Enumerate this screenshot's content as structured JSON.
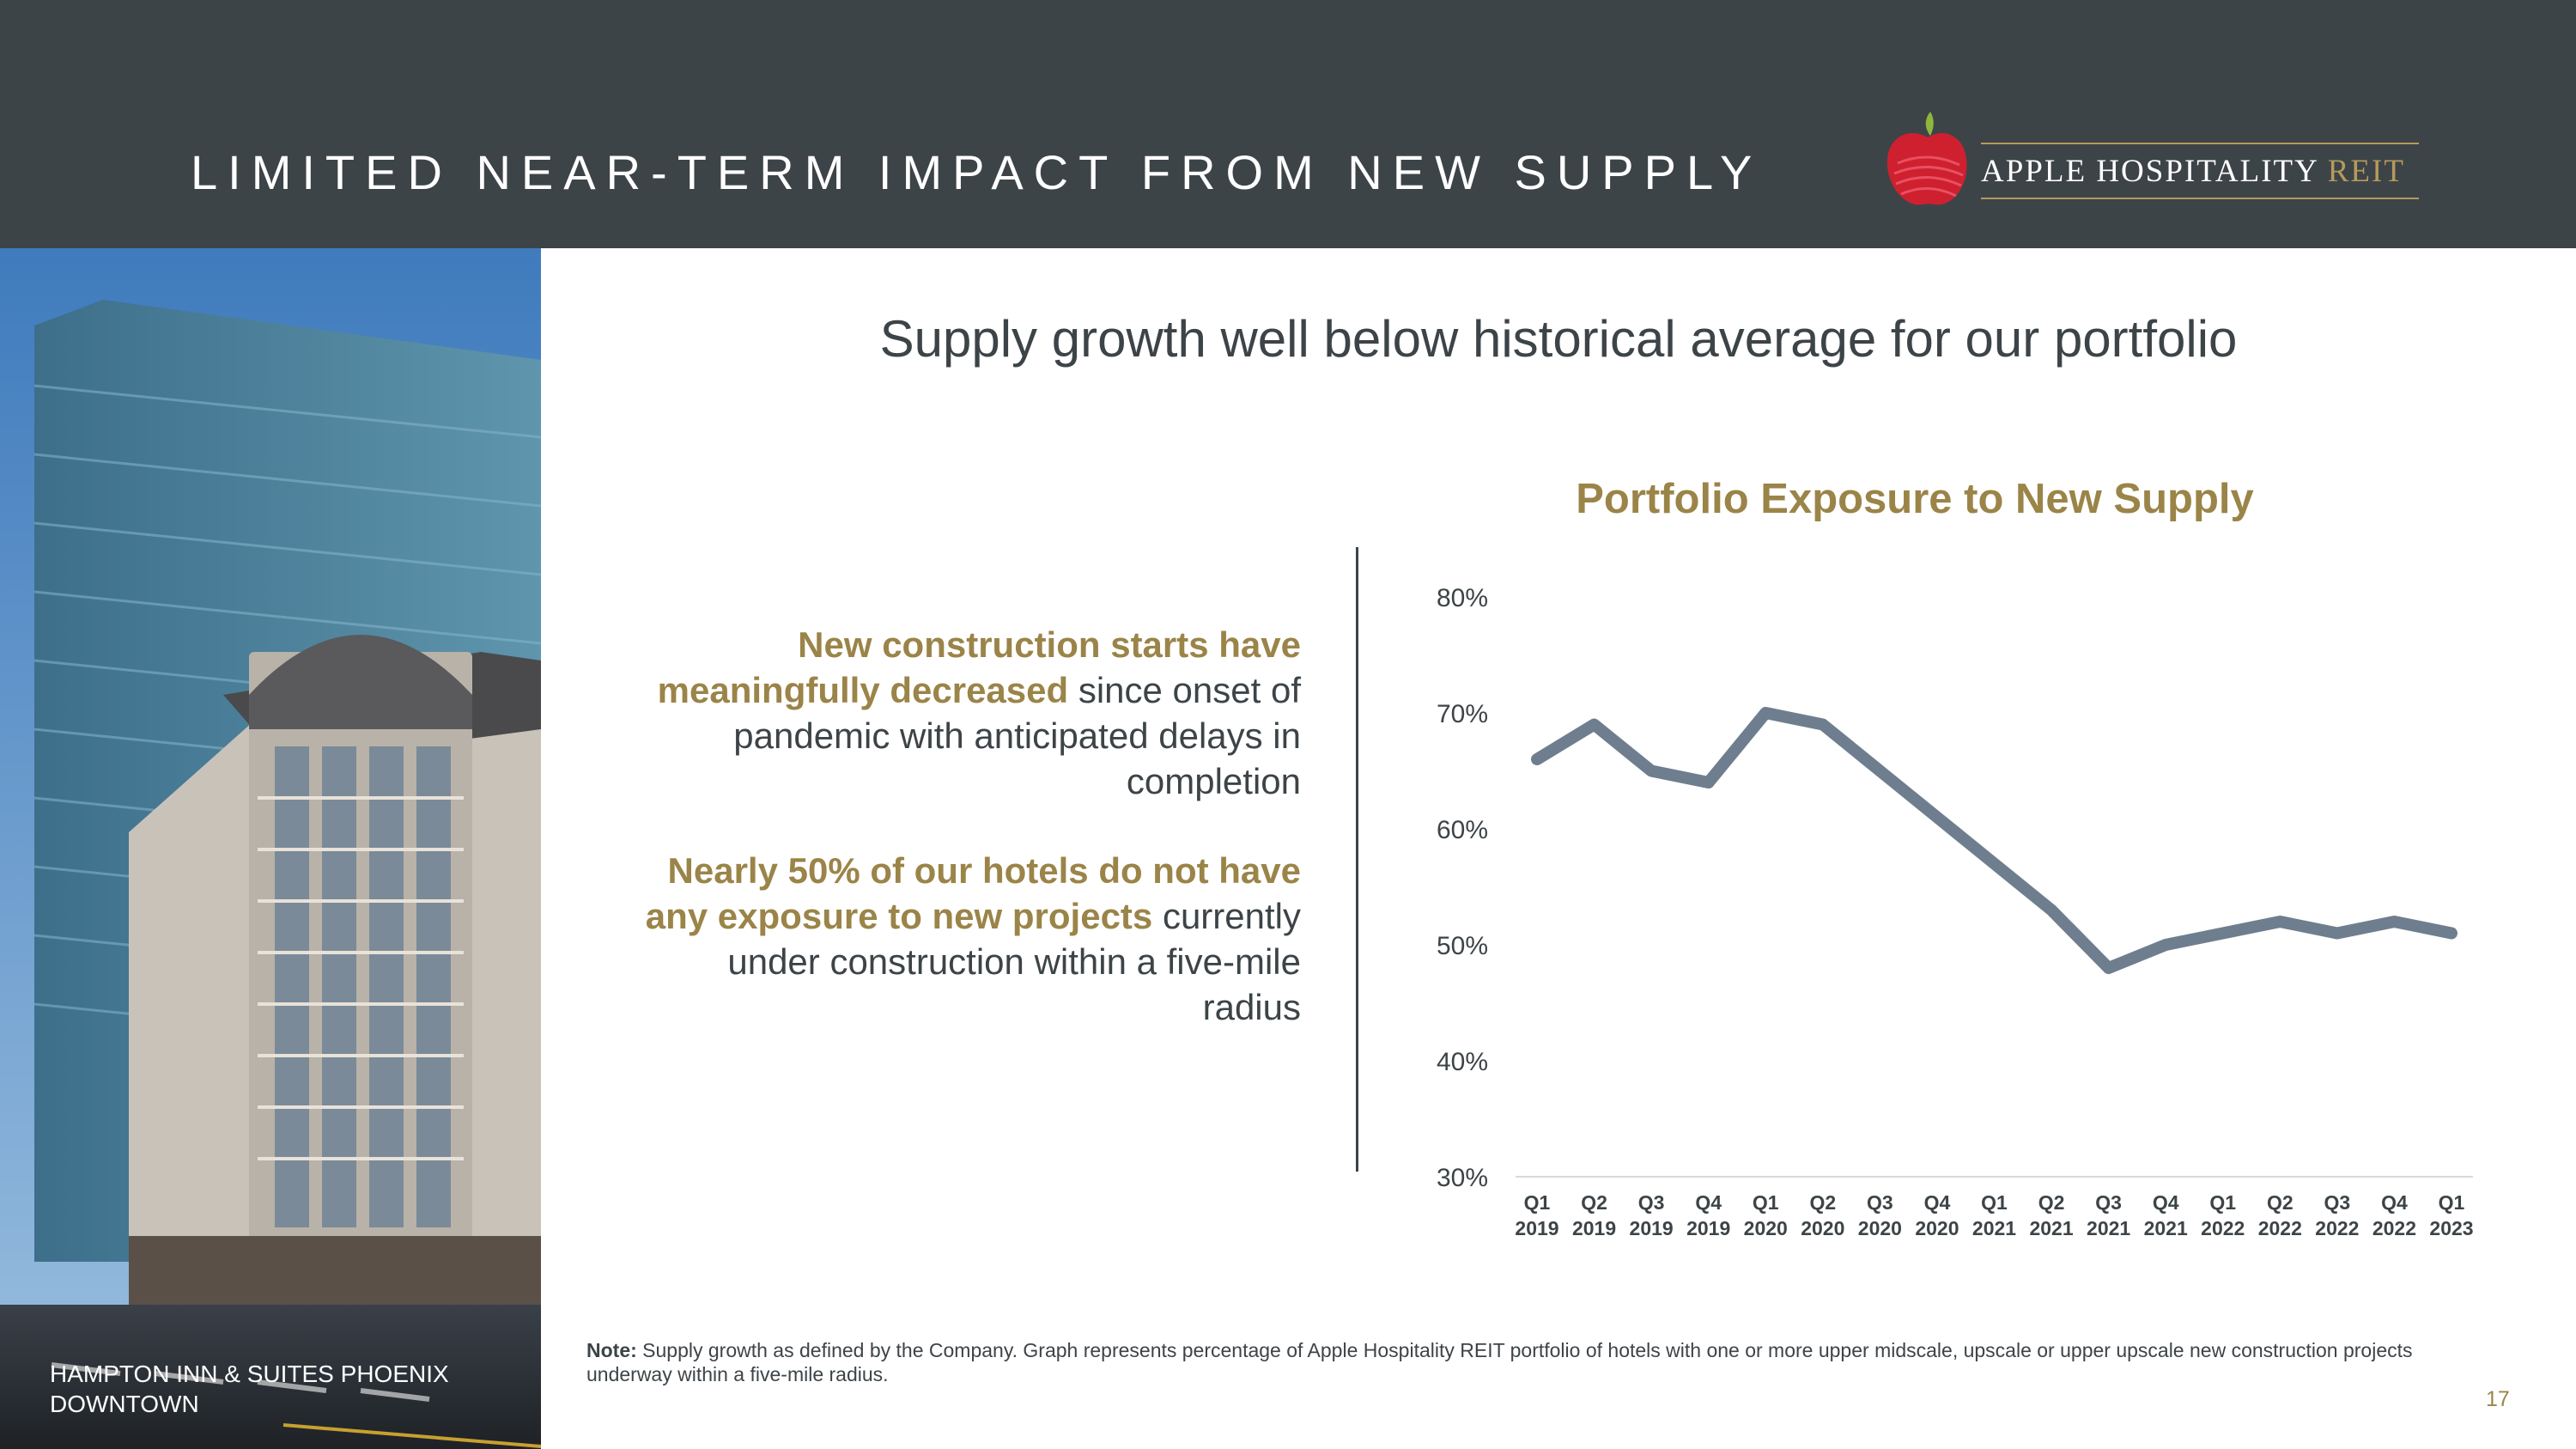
{
  "header": {
    "title": "LIMITED NEAR-TERM IMPACT FROM NEW SUPPLY",
    "logo_main": "APPLE HOSPITALITY",
    "logo_accent": "REIT"
  },
  "photo": {
    "caption": "HAMPTON INN & SUITES PHOENIX DOWNTOWN"
  },
  "subtitle": "Supply growth well below historical average for our portfolio",
  "points": [
    {
      "highlight": "New construction starts have meaningfully decreased",
      "rest": " since onset of pandemic with anticipated delays in completion"
    },
    {
      "highlight": "Nearly 50% of our hotels do not have any exposure to new projects",
      "rest": " currently under construction within a five-mile radius"
    }
  ],
  "chart_data": {
    "type": "line",
    "title": "Portfolio Exposure to New Supply",
    "categories": [
      [
        "Q1",
        "2019"
      ],
      [
        "Q2",
        "2019"
      ],
      [
        "Q3",
        "2019"
      ],
      [
        "Q4",
        "2019"
      ],
      [
        "Q1",
        "2020"
      ],
      [
        "Q2",
        "2020"
      ],
      [
        "Q3",
        "2020"
      ],
      [
        "Q4",
        "2020"
      ],
      [
        "Q1",
        "2021"
      ],
      [
        "Q2",
        "2021"
      ],
      [
        "Q3",
        "2021"
      ],
      [
        "Q4",
        "2021"
      ],
      [
        "Q1",
        "2022"
      ],
      [
        "Q2",
        "2022"
      ],
      [
        "Q3",
        "2022"
      ],
      [
        "Q4",
        "2022"
      ],
      [
        "Q1",
        "2023"
      ]
    ],
    "values": [
      66,
      69,
      65,
      64,
      70,
      69,
      65,
      61,
      57,
      53,
      48,
      50,
      51,
      52,
      51,
      52,
      51
    ],
    "ylim": [
      30,
      80
    ],
    "yticks": [
      30,
      40,
      50,
      60,
      70,
      80
    ],
    "ytick_labels": [
      "30%",
      "40%",
      "50%",
      "60%",
      "70%",
      "80%"
    ],
    "grid": false,
    "line_color": "#6e7e8e"
  },
  "note": {
    "label": "Note:",
    "text": " Supply growth as defined by the Company. Graph represents percentage of Apple Hospitality REIT portfolio of hotels with one or more upper midscale, upscale or upper upscale new construction projects underway within a five-mile radius."
  },
  "page_number": "17",
  "colors": {
    "header_bg": "#3d4448",
    "accent_gold": "#9b8448",
    "logo_red": "#cf2030"
  }
}
